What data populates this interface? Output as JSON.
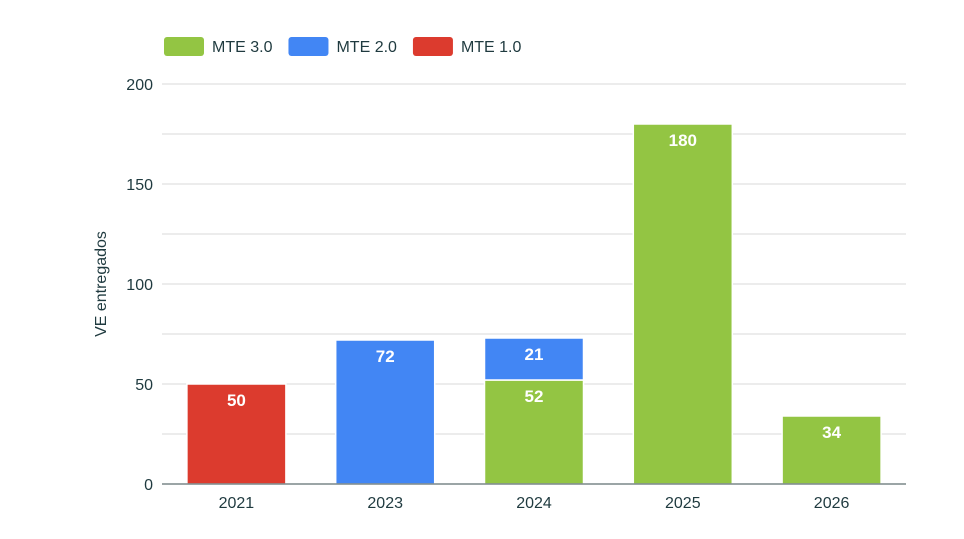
{
  "chart_data": {
    "type": "bar",
    "stacked": true,
    "categories": [
      "2021",
      "2023",
      "2024",
      "2025",
      "2026"
    ],
    "series": [
      {
        "name": "MTE 3.0",
        "color": "#93c543",
        "values": [
          0,
          0,
          52,
          180,
          34
        ]
      },
      {
        "name": "MTE 2.0",
        "color": "#4286f4",
        "values": [
          0,
          72,
          21,
          0,
          0
        ]
      },
      {
        "name": "MTE 1.0",
        "color": "#dc3b2e",
        "values": [
          50,
          0,
          0,
          0,
          0
        ]
      }
    ],
    "ylabel": "VE entregados",
    "xlabel": "",
    "ylim": [
      0,
      200
    ],
    "yticks": [
      0,
      50,
      100,
      150,
      200
    ],
    "grid": true,
    "legend": "top-left"
  }
}
